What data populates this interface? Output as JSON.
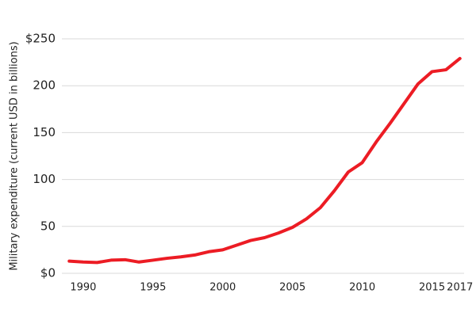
{
  "chart_data": {
    "type": "line",
    "y_label": "Military expenditure (current USD in billions)",
    "x": [
      1989,
      1990,
      1991,
      1992,
      1993,
      1994,
      1995,
      1996,
      1997,
      1998,
      1999,
      2000,
      2001,
      2002,
      2003,
      2004,
      2005,
      2006,
      2007,
      2008,
      2009,
      2010,
      2011,
      2012,
      2013,
      2014,
      2015,
      2016,
      2017
    ],
    "series": [
      {
        "color": "#ec1c24",
        "values": [
          13,
          12,
          11.5,
          14,
          14.5,
          12,
          14,
          16,
          17.5,
          19.5,
          23,
          25,
          30,
          35,
          38,
          43,
          49,
          58,
          70,
          88,
          108,
          118,
          140,
          160,
          181,
          202,
          215,
          217,
          229
        ]
      }
    ],
    "xlim": [
      1988.7,
      2017.3
    ],
    "xticks": [
      1990,
      1995,
      2000,
      2005,
      2010,
      2015,
      2017
    ],
    "ylim": [
      0,
      250
    ],
    "yticks": [
      {
        "value": 0,
        "label": "$0"
      },
      50,
      100,
      150,
      200,
      {
        "value": 250,
        "label": "$250"
      }
    ],
    "grid": true
  }
}
